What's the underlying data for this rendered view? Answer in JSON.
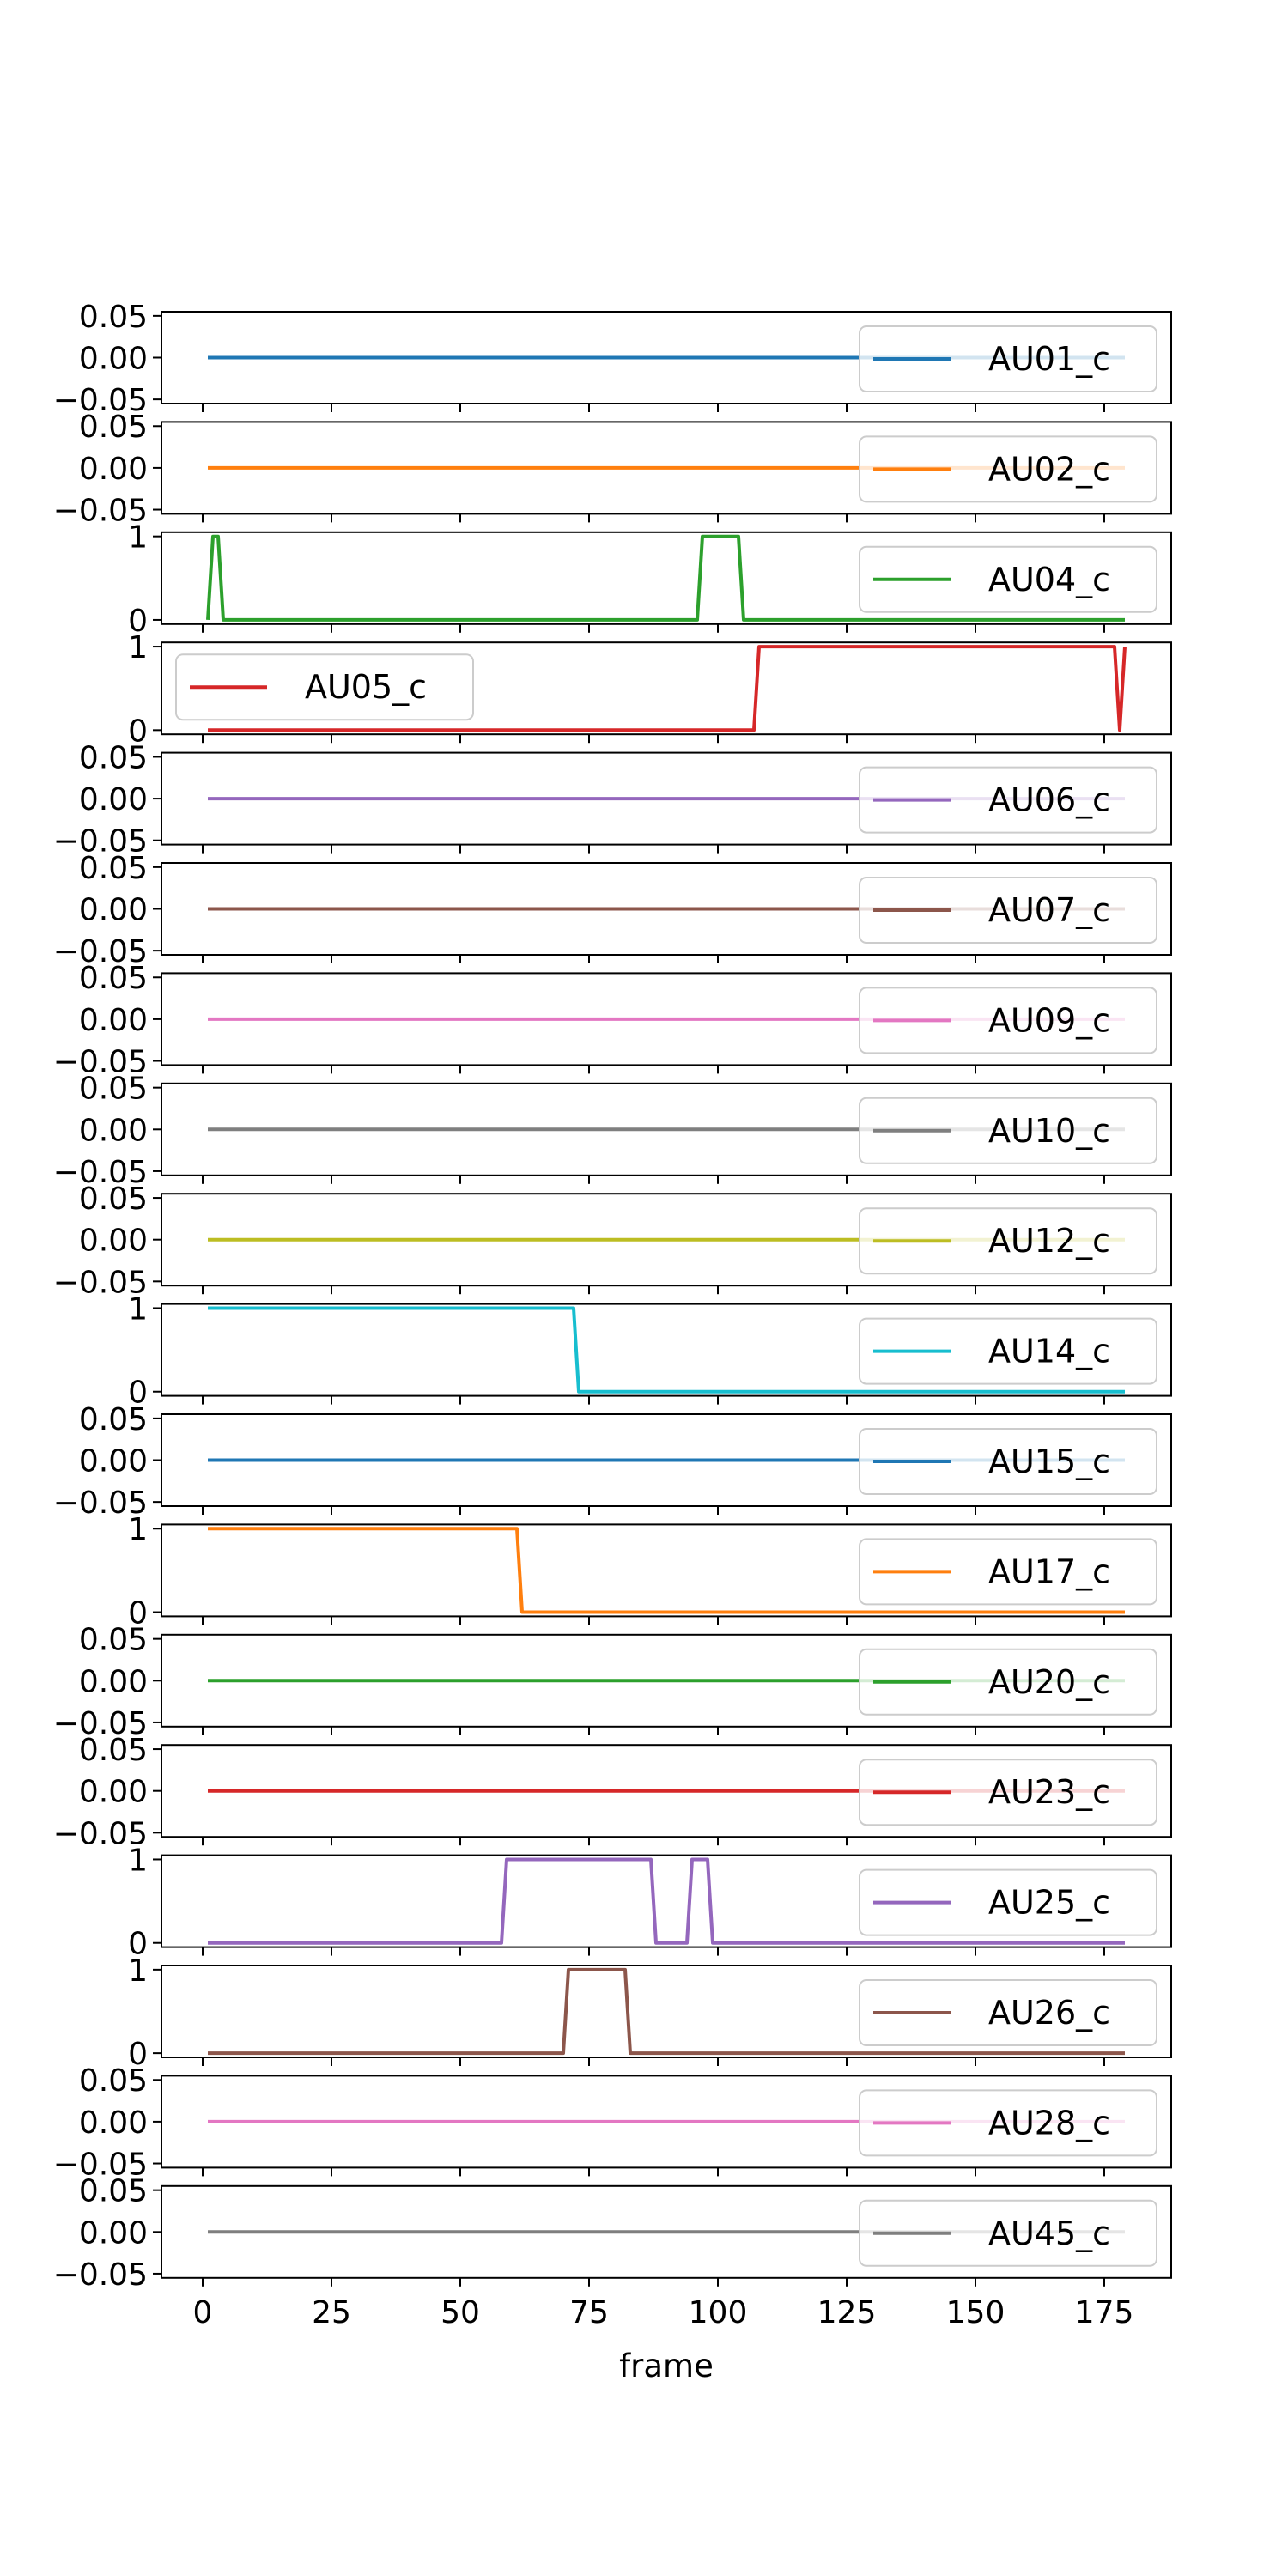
{
  "chart_data": {
    "type": "line",
    "layout": "stacked-subplots",
    "shared_x": true,
    "xlabel": "frame",
    "x_ticks": [
      0,
      25,
      50,
      75,
      100,
      125,
      150,
      175
    ],
    "xlim": [
      -8,
      188
    ],
    "grid": false,
    "series": [
      {
        "name": "AU01_c",
        "color": "#1f77b4",
        "legend": "right",
        "yticks": [
          "0.05",
          "0.00",
          "−0.05"
        ],
        "ylim": [
          -0.055,
          0.055
        ],
        "points": [
          [
            1,
            0
          ],
          [
            179,
            0
          ]
        ]
      },
      {
        "name": "AU02_c",
        "color": "#ff7f0e",
        "legend": "right",
        "yticks": [
          "0.05",
          "0.00",
          "−0.05"
        ],
        "ylim": [
          -0.055,
          0.055
        ],
        "points": [
          [
            1,
            0
          ],
          [
            179,
            0
          ]
        ]
      },
      {
        "name": "AU04_c",
        "color": "#2ca02c",
        "legend": "right",
        "yticks": [
          "1",
          "0"
        ],
        "ylim": [
          -0.05,
          1.05
        ],
        "points": [
          [
            1,
            0
          ],
          [
            2,
            1
          ],
          [
            3,
            1
          ],
          [
            4,
            0
          ],
          [
            96,
            0
          ],
          [
            97,
            1
          ],
          [
            104,
            1
          ],
          [
            105,
            0
          ],
          [
            179,
            0
          ]
        ]
      },
      {
        "name": "AU05_c",
        "color": "#d62728",
        "legend": "left",
        "yticks": [
          "1",
          "0"
        ],
        "ylim": [
          -0.05,
          1.05
        ],
        "points": [
          [
            1,
            0
          ],
          [
            107,
            0
          ],
          [
            108,
            1
          ],
          [
            177,
            1
          ],
          [
            178,
            0
          ],
          [
            179,
            1
          ]
        ]
      },
      {
        "name": "AU06_c",
        "color": "#9467bd",
        "legend": "right",
        "yticks": [
          "0.05",
          "0.00",
          "−0.05"
        ],
        "ylim": [
          -0.055,
          0.055
        ],
        "points": [
          [
            1,
            0
          ],
          [
            179,
            0
          ]
        ]
      },
      {
        "name": "AU07_c",
        "color": "#8c564b",
        "legend": "right",
        "yticks": [
          "0.05",
          "0.00",
          "−0.05"
        ],
        "ylim": [
          -0.055,
          0.055
        ],
        "points": [
          [
            1,
            0
          ],
          [
            179,
            0
          ]
        ]
      },
      {
        "name": "AU09_c",
        "color": "#e377c2",
        "legend": "right",
        "yticks": [
          "0.05",
          "0.00",
          "−0.05"
        ],
        "ylim": [
          -0.055,
          0.055
        ],
        "points": [
          [
            1,
            0
          ],
          [
            179,
            0
          ]
        ]
      },
      {
        "name": "AU10_c",
        "color": "#7f7f7f",
        "legend": "right",
        "yticks": [
          "0.05",
          "0.00",
          "−0.05"
        ],
        "ylim": [
          -0.055,
          0.055
        ],
        "points": [
          [
            1,
            0
          ],
          [
            179,
            0
          ]
        ]
      },
      {
        "name": "AU12_c",
        "color": "#bcbd22",
        "legend": "right",
        "yticks": [
          "0.05",
          "0.00",
          "−0.05"
        ],
        "ylim": [
          -0.055,
          0.055
        ],
        "points": [
          [
            1,
            0
          ],
          [
            179,
            0
          ]
        ]
      },
      {
        "name": "AU14_c",
        "color": "#17becf",
        "legend": "right",
        "yticks": [
          "1",
          "0"
        ],
        "ylim": [
          -0.05,
          1.05
        ],
        "points": [
          [
            1,
            1
          ],
          [
            72,
            1
          ],
          [
            73,
            0
          ],
          [
            179,
            0
          ]
        ]
      },
      {
        "name": "AU15_c",
        "color": "#1f77b4",
        "legend": "right",
        "yticks": [
          "0.05",
          "0.00",
          "−0.05"
        ],
        "ylim": [
          -0.055,
          0.055
        ],
        "points": [
          [
            1,
            0
          ],
          [
            179,
            0
          ]
        ]
      },
      {
        "name": "AU17_c",
        "color": "#ff7f0e",
        "legend": "right",
        "yticks": [
          "1",
          "0"
        ],
        "ylim": [
          -0.05,
          1.05
        ],
        "points": [
          [
            1,
            1
          ],
          [
            61,
            1
          ],
          [
            62,
            0
          ],
          [
            179,
            0
          ]
        ]
      },
      {
        "name": "AU20_c",
        "color": "#2ca02c",
        "legend": "right",
        "yticks": [
          "0.05",
          "0.00",
          "−0.05"
        ],
        "ylim": [
          -0.055,
          0.055
        ],
        "points": [
          [
            1,
            0
          ],
          [
            179,
            0
          ]
        ]
      },
      {
        "name": "AU23_c",
        "color": "#d62728",
        "legend": "right",
        "yticks": [
          "0.05",
          "0.00",
          "−0.05"
        ],
        "ylim": [
          -0.055,
          0.055
        ],
        "points": [
          [
            1,
            0
          ],
          [
            179,
            0
          ]
        ]
      },
      {
        "name": "AU25_c",
        "color": "#9467bd",
        "legend": "right",
        "yticks": [
          "1",
          "0"
        ],
        "ylim": [
          -0.05,
          1.05
        ],
        "points": [
          [
            1,
            0
          ],
          [
            58,
            0
          ],
          [
            59,
            1
          ],
          [
            87,
            1
          ],
          [
            88,
            0
          ],
          [
            94,
            0
          ],
          [
            95,
            1
          ],
          [
            98,
            1
          ],
          [
            99,
            0
          ],
          [
            179,
            0
          ]
        ]
      },
      {
        "name": "AU26_c",
        "color": "#8c564b",
        "legend": "right",
        "yticks": [
          "1",
          "0"
        ],
        "ylim": [
          -0.05,
          1.05
        ],
        "points": [
          [
            1,
            0
          ],
          [
            70,
            0
          ],
          [
            71,
            1
          ],
          [
            82,
            1
          ],
          [
            83,
            0
          ],
          [
            179,
            0
          ]
        ]
      },
      {
        "name": "AU28_c",
        "color": "#e377c2",
        "legend": "right",
        "yticks": [
          "0.05",
          "0.00",
          "−0.05"
        ],
        "ylim": [
          -0.055,
          0.055
        ],
        "points": [
          [
            1,
            0
          ],
          [
            179,
            0
          ]
        ]
      },
      {
        "name": "AU45_c",
        "color": "#7f7f7f",
        "legend": "right",
        "yticks": [
          "0.05",
          "0.00",
          "−0.05"
        ],
        "ylim": [
          -0.055,
          0.055
        ],
        "points": [
          [
            1,
            0
          ],
          [
            179,
            0
          ]
        ]
      }
    ]
  }
}
